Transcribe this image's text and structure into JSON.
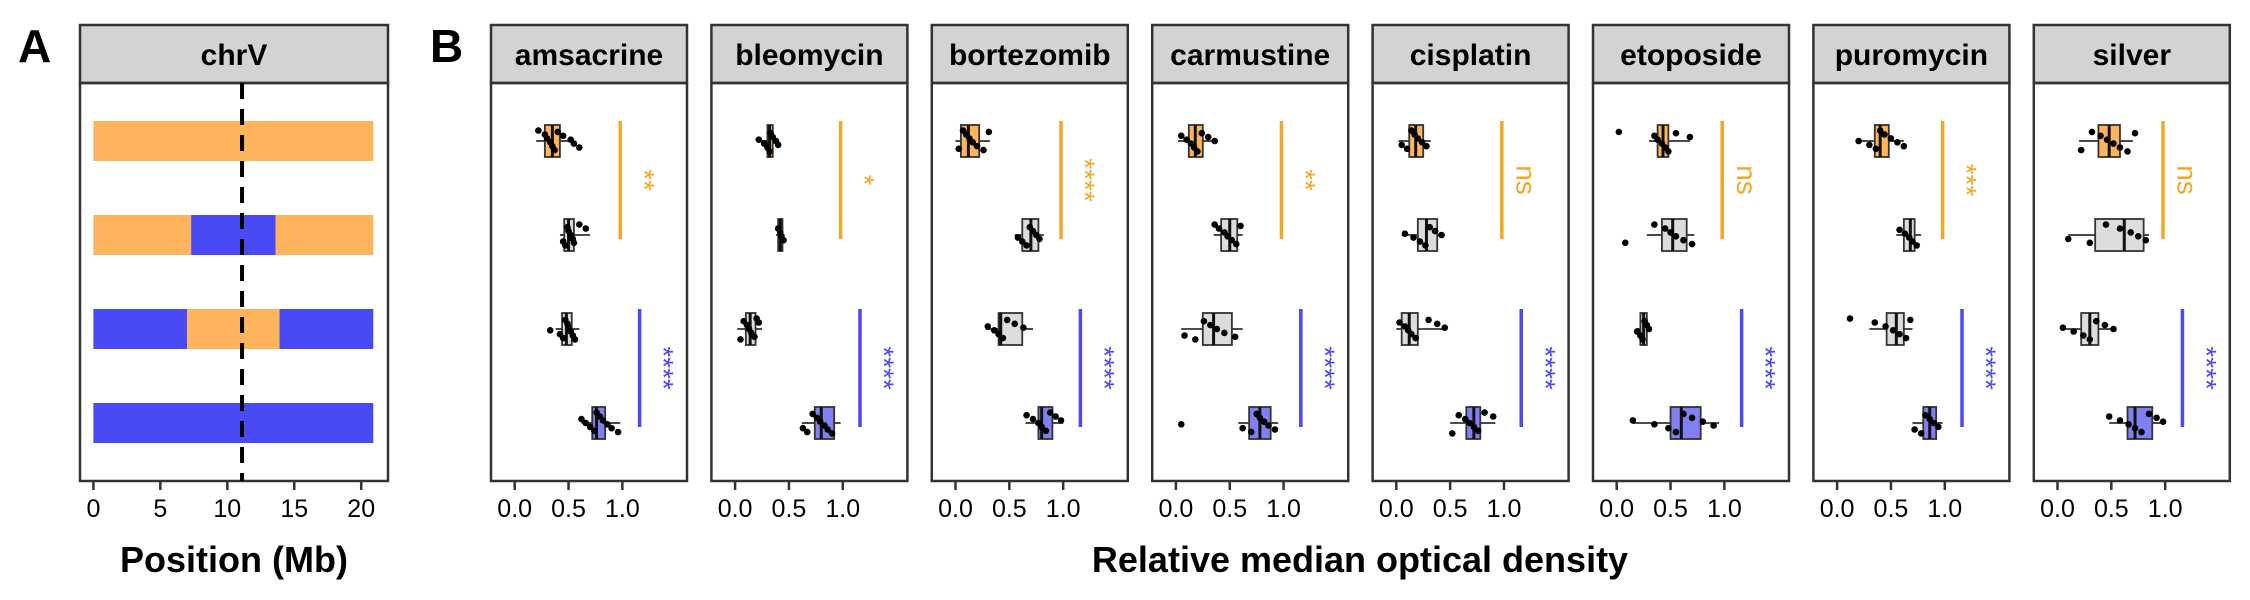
{
  "colors": {
    "orange": "#FDB45C",
    "orange_line": "#F5A623",
    "blue": "#4A4AF4",
    "blue_box": "#8080F0",
    "grey_box": "#DCDCDC",
    "strip_bg": "#D3D3D3",
    "dot": "#000000",
    "dashed": "#000000"
  },
  "panelA": {
    "letter": "A",
    "strip_label": "chrV",
    "xlabel": "Position (Mb)",
    "xticks": [
      0,
      5,
      10,
      15,
      20
    ],
    "tick_labels": [
      "0",
      "5",
      "10",
      "15",
      "20"
    ],
    "xlim": [
      -1,
      22
    ],
    "dashed_at": 11.1,
    "chromosome_length": 20.9,
    "strains": [
      {
        "segments": [
          {
            "start": 0,
            "end": 20.9,
            "parent": "orange"
          }
        ]
      },
      {
        "segments": [
          {
            "start": 0,
            "end": 7.3,
            "parent": "orange"
          },
          {
            "start": 7.3,
            "end": 13.6,
            "parent": "blue"
          },
          {
            "start": 13.6,
            "end": 20.9,
            "parent": "orange"
          }
        ]
      },
      {
        "segments": [
          {
            "start": 0,
            "end": 7.0,
            "parent": "blue"
          },
          {
            "start": 7.0,
            "end": 13.9,
            "parent": "orange"
          },
          {
            "start": 13.9,
            "end": 20.9,
            "parent": "blue"
          }
        ]
      },
      {
        "segments": [
          {
            "start": 0,
            "end": 20.9,
            "parent": "blue"
          }
        ]
      }
    ]
  },
  "panelB": {
    "letter": "B",
    "xlabel": "Relative median optical density",
    "xticks": [
      0.0,
      0.5,
      1.0
    ],
    "tick_labels": [
      "0.0",
      "0.5",
      "1.0"
    ],
    "xlim": [
      -0.22,
      1.6
    ]
  },
  "chart_data": {
    "type": "boxplot",
    "group_fills": [
      "orange",
      "grey",
      "grey",
      "blue"
    ],
    "facets": [
      {
        "name": "amsacrine",
        "boxes": [
          {
            "q1": 0.28,
            "med": 0.35,
            "q3": 0.42,
            "lo": 0.2,
            "hi": 0.55,
            "pts": [
              0.22,
              0.28,
              0.3,
              0.33,
              0.35,
              0.37,
              0.4,
              0.45,
              0.52,
              0.55,
              0.6
            ]
          },
          {
            "q1": 0.46,
            "med": 0.5,
            "q3": 0.55,
            "lo": 0.42,
            "hi": 0.7,
            "pts": [
              0.45,
              0.47,
              0.49,
              0.5,
              0.52,
              0.54,
              0.55,
              0.6,
              0.66
            ]
          },
          {
            "q1": 0.44,
            "med": 0.48,
            "q3": 0.53,
            "lo": 0.38,
            "hi": 0.6,
            "pts": [
              0.33,
              0.42,
              0.45,
              0.47,
              0.49,
              0.5,
              0.52,
              0.54,
              0.56
            ]
          },
          {
            "q1": 0.72,
            "med": 0.76,
            "q3": 0.84,
            "lo": 0.62,
            "hi": 0.98,
            "pts": [
              0.62,
              0.66,
              0.7,
              0.74,
              0.76,
              0.79,
              0.82,
              0.86,
              0.9,
              0.96
            ]
          }
        ],
        "sig": [
          {
            "label": "**",
            "color": "orange",
            "rows": [
              1,
              2
            ]
          },
          {
            "label": "****",
            "color": "blue",
            "rows": [
              3,
              4
            ]
          }
        ]
      },
      {
        "name": "bleomycin",
        "boxes": [
          {
            "q1": 0.3,
            "med": 0.32,
            "q3": 0.35,
            "lo": 0.22,
            "hi": 0.4,
            "pts": [
              0.22,
              0.27,
              0.3,
              0.32,
              0.33,
              0.35,
              0.38,
              0.4
            ]
          },
          {
            "q1": 0.4,
            "med": 0.42,
            "q3": 0.44,
            "lo": 0.38,
            "hi": 0.46,
            "pts": [
              0.4,
              0.42,
              0.43,
              0.45
            ]
          },
          {
            "q1": 0.1,
            "med": 0.14,
            "q3": 0.19,
            "lo": 0.02,
            "hi": 0.25,
            "pts": [
              0.05,
              0.08,
              0.11,
              0.13,
              0.15,
              0.18,
              0.2,
              0.22
            ]
          },
          {
            "q1": 0.74,
            "med": 0.8,
            "q3": 0.92,
            "lo": 0.62,
            "hi": 0.98,
            "pts": [
              0.63,
              0.67,
              0.72,
              0.76,
              0.79,
              0.83,
              0.86,
              0.9
            ]
          }
        ],
        "sig": [
          {
            "label": "*",
            "color": "orange",
            "rows": [
              1,
              2
            ]
          },
          {
            "label": "****",
            "color": "blue",
            "rows": [
              3,
              4
            ]
          }
        ]
      },
      {
        "name": "bortezomib",
        "boxes": [
          {
            "q1": 0.05,
            "med": 0.12,
            "q3": 0.22,
            "lo": 0.0,
            "hi": 0.32,
            "pts": [
              0.03,
              0.07,
              0.1,
              0.13,
              0.16,
              0.2,
              0.26,
              0.31
            ]
          },
          {
            "q1": 0.62,
            "med": 0.7,
            "q3": 0.77,
            "lo": 0.55,
            "hi": 0.82,
            "pts": [
              0.58,
              0.62,
              0.66,
              0.69,
              0.72,
              0.75,
              0.78
            ]
          },
          {
            "q1": 0.4,
            "med": 0.42,
            "q3": 0.62,
            "lo": 0.28,
            "hi": 0.72,
            "pts": [
              0.3,
              0.36,
              0.4,
              0.44,
              0.48,
              0.55,
              0.63
            ]
          },
          {
            "q1": 0.77,
            "med": 0.8,
            "q3": 0.9,
            "lo": 0.65,
            "hi": 1.0,
            "pts": [
              0.66,
              0.72,
              0.77,
              0.8,
              0.84,
              0.88,
              0.93,
              0.98
            ]
          }
        ],
        "sig": [
          {
            "label": "****",
            "color": "orange",
            "rows": [
              1,
              2
            ]
          },
          {
            "label": "****",
            "color": "blue",
            "rows": [
              3,
              4
            ]
          }
        ]
      },
      {
        "name": "carmustine",
        "boxes": [
          {
            "q1": 0.12,
            "med": 0.18,
            "q3": 0.25,
            "lo": 0.02,
            "hi": 0.38,
            "pts": [
              0.05,
              0.1,
              0.14,
              0.17,
              0.2,
              0.24,
              0.3,
              0.36
            ]
          },
          {
            "q1": 0.42,
            "med": 0.5,
            "q3": 0.57,
            "lo": 0.35,
            "hi": 0.62,
            "pts": [
              0.36,
              0.4,
              0.45,
              0.48,
              0.52,
              0.56,
              0.6
            ]
          },
          {
            "q1": 0.25,
            "med": 0.35,
            "q3": 0.52,
            "lo": 0.05,
            "hi": 0.62,
            "pts": [
              0.08,
              0.18,
              0.26,
              0.32,
              0.38,
              0.45,
              0.55
            ]
          },
          {
            "q1": 0.68,
            "med": 0.78,
            "q3": 0.88,
            "lo": 0.58,
            "hi": 0.95,
            "pts": [
              0.05,
              0.62,
              0.7,
              0.75,
              0.78,
              0.82,
              0.86,
              0.92
            ]
          }
        ],
        "sig": [
          {
            "label": "**",
            "color": "orange",
            "rows": [
              1,
              2
            ]
          },
          {
            "label": "****",
            "color": "blue",
            "rows": [
              3,
              4
            ]
          }
        ]
      },
      {
        "name": "cisplatin",
        "boxes": [
          {
            "q1": 0.12,
            "med": 0.18,
            "q3": 0.25,
            "lo": 0.02,
            "hi": 0.32,
            "pts": [
              0.05,
              0.1,
              0.14,
              0.17,
              0.2,
              0.24,
              0.28
            ]
          },
          {
            "q1": 0.2,
            "med": 0.28,
            "q3": 0.38,
            "lo": 0.05,
            "hi": 0.45,
            "pts": [
              0.08,
              0.16,
              0.22,
              0.27,
              0.31,
              0.36,
              0.42
            ]
          },
          {
            "q1": 0.05,
            "med": 0.12,
            "q3": 0.2,
            "lo": 0.0,
            "hi": 0.45,
            "pts": [
              0.03,
              0.08,
              0.11,
              0.14,
              0.18,
              0.3,
              0.38,
              0.45
            ]
          },
          {
            "q1": 0.65,
            "med": 0.72,
            "q3": 0.78,
            "lo": 0.5,
            "hi": 0.92,
            "pts": [
              0.52,
              0.58,
              0.64,
              0.68,
              0.72,
              0.76,
              0.82,
              0.9
            ]
          }
        ],
        "sig": [
          {
            "label": "ns",
            "color": "orange",
            "rows": [
              1,
              2
            ]
          },
          {
            "label": "****",
            "color": "blue",
            "rows": [
              3,
              4
            ]
          }
        ]
      },
      {
        "name": "etoposide",
        "boxes": [
          {
            "q1": 0.38,
            "med": 0.43,
            "q3": 0.48,
            "lo": 0.3,
            "hi": 0.68,
            "pts": [
              0.02,
              0.35,
              0.38,
              0.42,
              0.45,
              0.48,
              0.55,
              0.68
            ]
          },
          {
            "q1": 0.42,
            "med": 0.52,
            "q3": 0.65,
            "lo": 0.28,
            "hi": 0.72,
            "pts": [
              0.08,
              0.35,
              0.45,
              0.5,
              0.55,
              0.62,
              0.7
            ]
          },
          {
            "q1": 0.22,
            "med": 0.25,
            "q3": 0.28,
            "lo": 0.18,
            "hi": 0.32,
            "pts": [
              0.19,
              0.22,
              0.24,
              0.26,
              0.28,
              0.3
            ]
          },
          {
            "q1": 0.5,
            "med": 0.6,
            "q3": 0.78,
            "lo": 0.15,
            "hi": 0.95,
            "pts": [
              0.15,
              0.35,
              0.48,
              0.55,
              0.62,
              0.7,
              0.8,
              0.9
            ]
          }
        ],
        "sig": [
          {
            "label": "ns",
            "color": "orange",
            "rows": [
              1,
              2
            ]
          },
          {
            "label": "****",
            "color": "blue",
            "rows": [
              3,
              4
            ]
          }
        ]
      },
      {
        "name": "puromycin",
        "boxes": [
          {
            "q1": 0.35,
            "med": 0.4,
            "q3": 0.48,
            "lo": 0.18,
            "hi": 0.62,
            "pts": [
              0.2,
              0.3,
              0.36,
              0.4,
              0.44,
              0.5,
              0.56,
              0.62
            ]
          },
          {
            "q1": 0.62,
            "med": 0.68,
            "q3": 0.72,
            "lo": 0.55,
            "hi": 0.78,
            "pts": [
              0.58,
              0.63,
              0.67,
              0.7,
              0.74
            ]
          },
          {
            "q1": 0.46,
            "med": 0.55,
            "q3": 0.62,
            "lo": 0.3,
            "hi": 0.7,
            "pts": [
              0.12,
              0.35,
              0.45,
              0.52,
              0.58,
              0.64,
              0.68
            ]
          },
          {
            "q1": 0.8,
            "med": 0.86,
            "q3": 0.92,
            "lo": 0.7,
            "hi": 0.98,
            "pts": [
              0.72,
              0.78,
              0.82,
              0.86,
              0.9,
              0.94
            ]
          }
        ],
        "sig": [
          {
            "label": "***",
            "color": "orange",
            "rows": [
              1,
              2
            ]
          },
          {
            "label": "****",
            "color": "blue",
            "rows": [
              3,
              4
            ]
          }
        ]
      },
      {
        "name": "silver",
        "boxes": [
          {
            "q1": 0.38,
            "med": 0.48,
            "q3": 0.58,
            "lo": 0.2,
            "hi": 0.7,
            "pts": [
              0.22,
              0.32,
              0.4,
              0.46,
              0.52,
              0.58,
              0.65,
              0.72
            ]
          },
          {
            "q1": 0.35,
            "med": 0.62,
            "q3": 0.8,
            "lo": 0.1,
            "hi": 0.85,
            "pts": [
              0.1,
              0.3,
              0.45,
              0.58,
              0.68,
              0.75,
              0.82
            ]
          },
          {
            "q1": 0.22,
            "med": 0.3,
            "q3": 0.38,
            "lo": 0.05,
            "hi": 0.52,
            "pts": [
              0.05,
              0.15,
              0.24,
              0.3,
              0.36,
              0.44,
              0.52
            ]
          },
          {
            "q1": 0.65,
            "med": 0.72,
            "q3": 0.88,
            "lo": 0.48,
            "hi": 1.0,
            "pts": [
              0.48,
              0.58,
              0.66,
              0.72,
              0.78,
              0.85,
              0.92,
              0.98
            ]
          }
        ],
        "sig": [
          {
            "label": "ns",
            "color": "orange",
            "rows": [
              1,
              2
            ]
          },
          {
            "label": "****",
            "color": "blue",
            "rows": [
              3,
              4
            ]
          }
        ]
      }
    ]
  }
}
